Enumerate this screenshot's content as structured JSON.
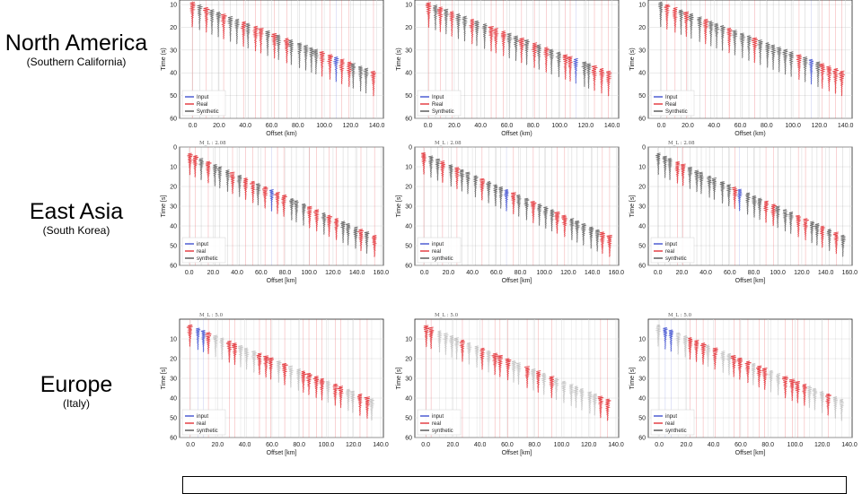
{
  "regions": [
    {
      "name": "North America",
      "sub": "(Southern California)"
    },
    {
      "name": "East Asia",
      "sub": "(South Korea)"
    },
    {
      "name": "Europe",
      "sub": "(Italy)"
    }
  ],
  "colors": {
    "input": "#3344cc",
    "real": "#e0242a",
    "synthetic": "#444444",
    "grid": "#d8d8d8"
  },
  "chart_data": [
    {
      "type": "scatter",
      "region": "North America",
      "ylabel": "Time (s)",
      "xlabel": "Offset (km)",
      "xticks": [
        "0.0",
        "20.0",
        "40.0",
        "60.0",
        "80.0",
        "100.0",
        "120.0",
        "140.0"
      ],
      "yticks": [
        "10",
        "20",
        "30",
        "40",
        "50",
        "60"
      ],
      "xlim": [
        -10,
        145
      ],
      "ylim": [
        60,
        8
      ],
      "legend": [
        "Input",
        "Real",
        "Synthetic"
      ],
      "magnitude": "",
      "moveout": {
        "t0": 10,
        "slope": 0.22
      },
      "input_offsets": [
        108,
        115,
        115
      ],
      "synthetic_style": "dark"
    },
    {
      "type": "scatter",
      "region": "East Asia",
      "ylabel": "Time [s]",
      "xlabel": "Offset [km]",
      "xticks": [
        "0.0",
        "20.0",
        "40.0",
        "60.0",
        "80.0",
        "100.0",
        "120.0",
        "140.0",
        "160.0"
      ],
      "yticks": [
        "0",
        "10",
        "20",
        "30",
        "40",
        "50",
        "60"
      ],
      "xlim": [
        -8,
        162
      ],
      "ylim": [
        60,
        0
      ],
      "legend": [
        "input",
        "real",
        "synthetic"
      ],
      "magnitude": "M_L : 2.08",
      "moveout": {
        "t0": 4,
        "slope": 0.27
      },
      "input_offsets": [
        68,
        68,
        68
      ],
      "synthetic_style": "dark"
    },
    {
      "type": "scatter",
      "region": "Europe",
      "ylabel": "Time [s]",
      "xlabel": "Offset [km]",
      "xticks": [
        "0.0",
        "20.0",
        "40.0",
        "60.0",
        "80.0",
        "100.0",
        "120.0",
        "140.0"
      ],
      "yticks": [
        "10",
        "20",
        "30",
        "40",
        "50",
        "60"
      ],
      "xlim": [
        -8,
        142
      ],
      "ylim": [
        60,
        0
      ],
      "legend": [
        "input",
        "real",
        "synthetic"
      ],
      "magnitude": "M_L : 5.0",
      "moveout": {
        "t0": 4,
        "slope": 0.28
      },
      "input_offsets": [
        7,
        7,
        7
      ],
      "synthetic_style": "light"
    }
  ]
}
